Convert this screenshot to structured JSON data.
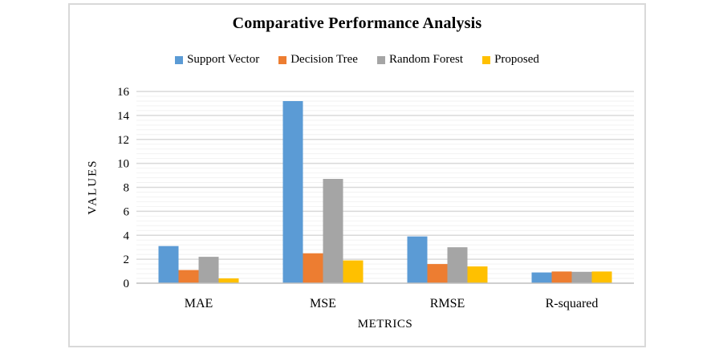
{
  "chart_data": {
    "type": "bar",
    "title": "Comparative Performance Analysis",
    "xlabel": "METRICS",
    "ylabel": "VALUES",
    "categories": [
      "MAE",
      "MSE",
      "RMSE",
      "R-squared"
    ],
    "series": [
      {
        "name": "Support Vector",
        "color": "#5B9BD5",
        "values": [
          3.1,
          15.2,
          3.9,
          0.9
        ]
      },
      {
        "name": "Decision Tree",
        "color": "#ED7D31",
        "values": [
          1.1,
          2.5,
          1.6,
          0.98
        ]
      },
      {
        "name": "Random Forest",
        "color": "#A5A5A5",
        "values": [
          2.2,
          8.7,
          3.0,
          0.95
        ]
      },
      {
        "name": "Proposed",
        "color": "#FFC000",
        "values": [
          0.4,
          1.9,
          1.4,
          0.98
        ]
      }
    ],
    "ylim": [
      0,
      16
    ],
    "y_major_step": 2,
    "y_minor_step": 0.4,
    "y_tick_labels": [
      "0",
      "2",
      "4",
      "6",
      "8",
      "10",
      "12",
      "14",
      "16"
    ],
    "grid": true,
    "legend_position": "top",
    "styles": {
      "grid_major_color": "#D9D9D9",
      "grid_minor_color": "#F2F2F2",
      "axis_line_color": "#BFBFBF",
      "frame_border_color": "#D9D9D9",
      "text_color": "#000000"
    }
  }
}
